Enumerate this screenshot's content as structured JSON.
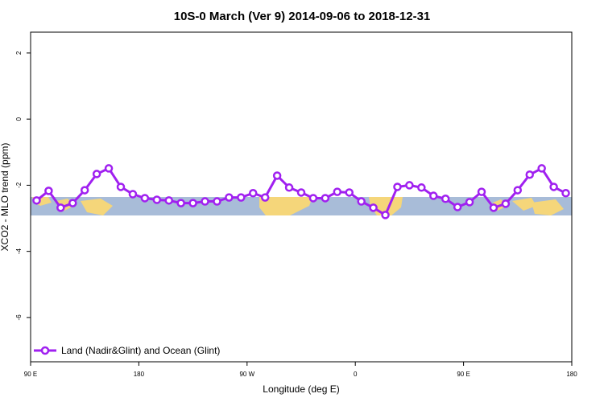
{
  "chart_data": {
    "type": "line",
    "title": "10S-0 March (Ver 9)   2014-09-06 to 2018-12-31",
    "x_label": "Longitude (deg E)",
    "y_label": "XCO2 - MLO trend (ppm)",
    "x": [
      95,
      105,
      115,
      125,
      135,
      145,
      155,
      165,
      175,
      185,
      195,
      205,
      215,
      225,
      235,
      245,
      255,
      265,
      275,
      285,
      295,
      305,
      315,
      325,
      335,
      345,
      355,
      365,
      375,
      385,
      395,
      405,
      415,
      425,
      435,
      445,
      455,
      465,
      475,
      485,
      495,
      505,
      515,
      525,
      535
    ],
    "series": [
      {
        "name": "Land (Nadir&Glint) and Ocean (Glint)",
        "color": "#a020f0",
        "values": [
          -2.46,
          -2.17,
          -2.68,
          -2.54,
          -2.15,
          -1.66,
          -1.49,
          -2.05,
          -2.27,
          -2.39,
          -2.44,
          -2.46,
          -2.54,
          -2.54,
          -2.49,
          -2.49,
          -2.37,
          -2.37,
          -2.24,
          -2.37,
          -1.71,
          -2.07,
          -2.22,
          -2.39,
          -2.39,
          -2.2,
          -2.22,
          -2.49,
          -2.68,
          -2.9,
          -2.05,
          -2.0,
          -2.07,
          -2.32,
          -2.41,
          -2.66,
          -2.51,
          -2.2,
          -2.68,
          -2.56,
          -2.15,
          -1.68,
          -1.49,
          -2.05,
          -2.24
        ]
      }
    ],
    "xlim": [
      90,
      540
    ],
    "xticks": [
      {
        "value": 90,
        "label": "90 E"
      },
      {
        "value": 180,
        "label": "180"
      },
      {
        "value": 270,
        "label": "90 W"
      },
      {
        "value": 360,
        "label": "0"
      },
      {
        "value": 450,
        "label": "90 E"
      },
      {
        "value": 540,
        "label": "180"
      }
    ],
    "ylim": [
      -7.34,
      2.63
    ],
    "yticks": [
      2,
      0,
      -2,
      -4,
      -6
    ],
    "legend": "bottom-left"
  }
}
